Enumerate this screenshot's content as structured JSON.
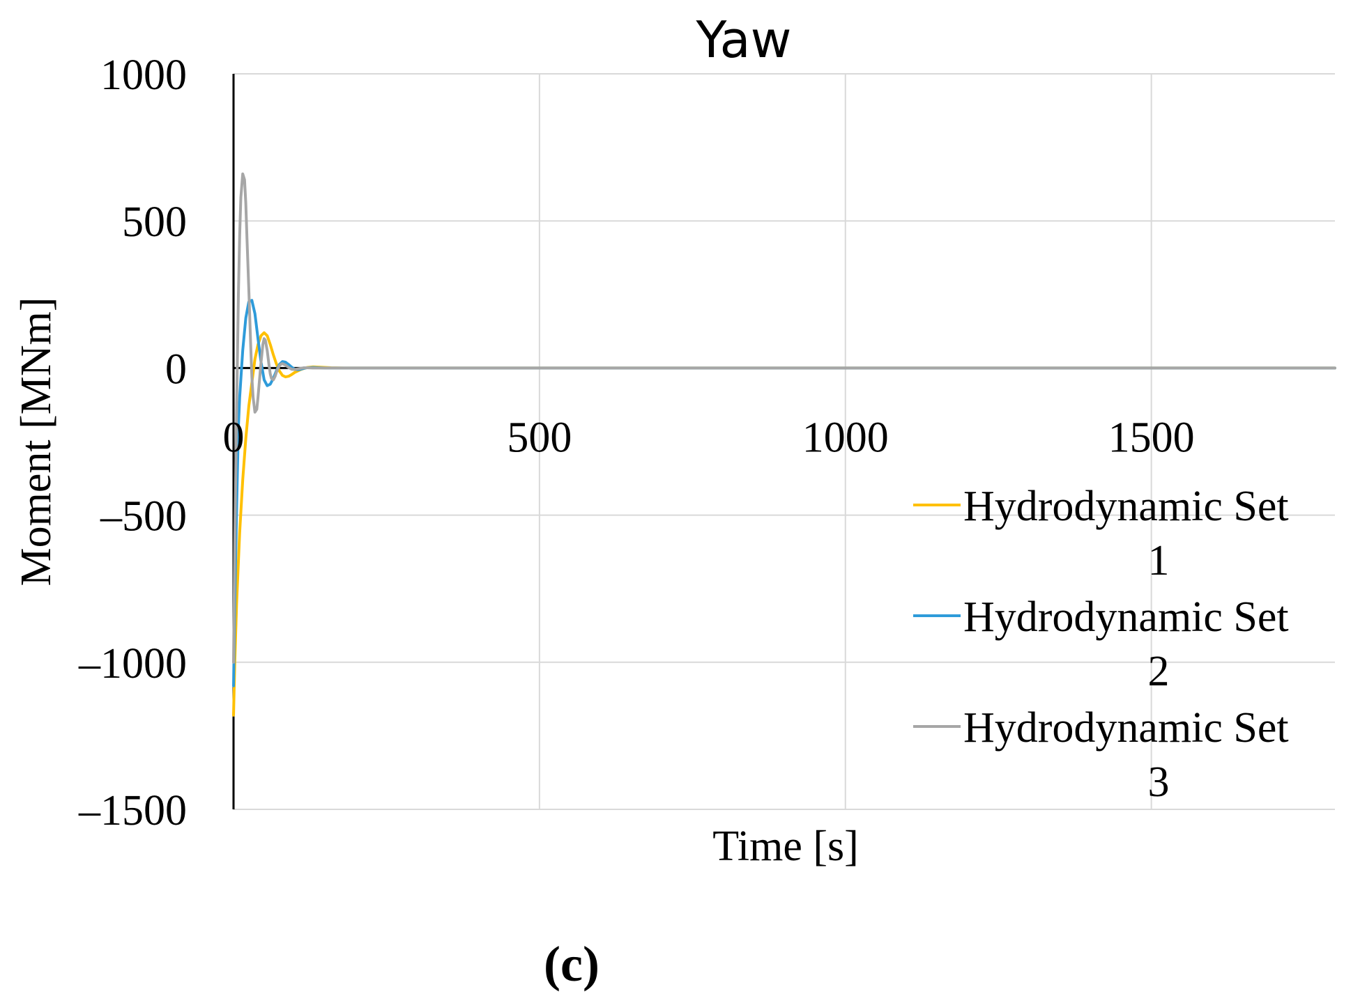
{
  "chart_data": {
    "type": "line",
    "title": "Yaw",
    "xlabel": "Time [s]",
    "ylabel": "Moment [MNm]",
    "xlim": [
      0,
      1800
    ],
    "ylim": [
      -1500,
      1000
    ],
    "xticks": [
      0,
      500,
      1000,
      1500
    ],
    "xtick_labels": [
      "0",
      "500",
      "1000",
      "1500"
    ],
    "yticks": [
      1000,
      500,
      0,
      -500,
      -1000,
      -1500
    ],
    "ytick_labels": [
      "1000",
      "500",
      "0",
      "–500",
      "–1000",
      "–1500"
    ],
    "grid": true,
    "legend_position": "right",
    "series": [
      {
        "name": "Hydrodynamic Set 1",
        "legend_lines": [
          "Hydrodynamic Set",
          "1"
        ],
        "color": "#FFC000",
        "x": [
          0,
          2,
          5,
          10,
          15,
          20,
          25,
          30,
          35,
          40,
          45,
          50,
          55,
          60,
          65,
          70,
          75,
          80,
          85,
          90,
          95,
          100,
          110,
          120,
          130,
          140,
          160,
          180,
          1800
        ],
        "y": [
          -1180,
          -1000,
          -800,
          -560,
          -380,
          -240,
          -130,
          -50,
          30,
          80,
          110,
          120,
          110,
          80,
          45,
          15,
          -10,
          -25,
          -30,
          -28,
          -22,
          -15,
          -5,
          2,
          4,
          3,
          1,
          0,
          0
        ]
      },
      {
        "name": "Hydrodynamic Set 2",
        "legend_lines": [
          "Hydrodynamic Set",
          "2"
        ],
        "color": "#2E9BDA",
        "x": [
          0,
          2,
          5,
          8,
          10,
          15,
          20,
          25,
          30,
          35,
          40,
          45,
          50,
          55,
          60,
          65,
          70,
          75,
          80,
          85,
          90,
          95,
          100,
          105,
          110,
          115,
          120,
          130,
          140,
          150,
          160,
          180,
          1800
        ],
        "y": [
          -1080,
          -800,
          -480,
          -200,
          -100,
          60,
          170,
          225,
          230,
          185,
          100,
          20,
          -40,
          -60,
          -55,
          -35,
          -10,
          12,
          22,
          20,
          12,
          3,
          -4,
          -6,
          -4,
          -1,
          1,
          2,
          1,
          0,
          0,
          0,
          0
        ]
      },
      {
        "name": "Hydrodynamic Set 3",
        "legend_lines": [
          "Hydrodynamic Set",
          "3"
        ],
        "color": "#A6A6A6",
        "x": [
          0,
          2,
          5,
          8,
          10,
          12,
          15,
          18,
          20,
          22,
          25,
          28,
          30,
          32,
          35,
          38,
          40,
          42,
          45,
          48,
          50,
          52,
          55,
          58,
          60,
          62,
          65,
          68,
          70,
          72,
          75,
          78,
          80,
          85,
          90,
          95,
          100,
          105,
          110,
          115,
          120,
          130,
          140,
          160,
          1800
        ],
        "y": [
          -1000,
          -600,
          -150,
          250,
          450,
          580,
          660,
          640,
          560,
          440,
          270,
          80,
          -30,
          -100,
          -150,
          -140,
          -100,
          -50,
          20,
          80,
          100,
          95,
          60,
          10,
          -20,
          -35,
          -40,
          -28,
          -15,
          -5,
          8,
          14,
          15,
          10,
          2,
          -4,
          -5,
          -3,
          -1,
          1,
          1,
          0,
          0,
          0,
          0
        ]
      }
    ]
  },
  "panel_label": "(c)"
}
